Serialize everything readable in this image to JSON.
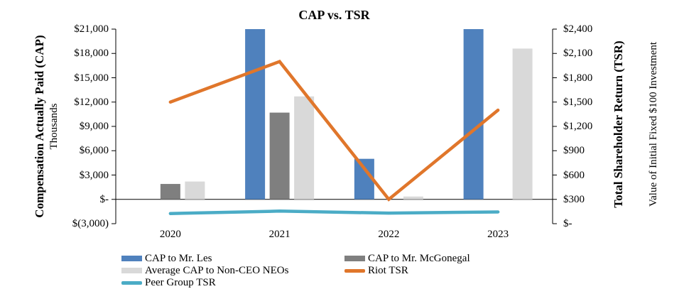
{
  "chart_data": {
    "type": "combo-bar-line",
    "title": "CAP vs. TSR",
    "categories": [
      "2020",
      "2021",
      "2022",
      "2023"
    ],
    "gridlines": false,
    "legend_position": "bottom",
    "left_axis": {
      "title": "Compensation Actually Paid (CAP)",
      "subtitle": "Thousands",
      "ticks": [
        "$21,000",
        "$18,000",
        "$15,000",
        "$12,000",
        "$9,000",
        "$6,000",
        "$3,000",
        "$-",
        "$(3,000)"
      ],
      "range": [
        -3000,
        21000
      ]
    },
    "right_axis": {
      "title": "Total Shareholder Return (TSR)",
      "subtitle": "Value of Initial Fixed $100 Investment",
      "ticks": [
        "$2,400",
        "$2,100",
        "$1,800",
        "$1,500",
        "$1,200",
        "$900",
        "$600",
        "$300",
        "$-"
      ],
      "range": [
        0,
        2400
      ]
    },
    "series": [
      {
        "name": "CAP to Mr. Les",
        "type": "bar",
        "axis": "left",
        "color": "#4F81BD",
        "values": [
          null,
          21000,
          5000,
          21000
        ]
      },
      {
        "name": "CAP to Mr. McGonegal",
        "type": "bar",
        "axis": "left",
        "color": "#7F7F7F",
        "values": [
          1900,
          10700,
          null,
          null
        ]
      },
      {
        "name": "Average CAP to Non-CEO NEOs",
        "type": "bar",
        "axis": "left",
        "color": "#D9D9D9",
        "values": [
          2200,
          12700,
          350,
          18600
        ]
      },
      {
        "name": "Riot TSR",
        "type": "line",
        "axis": "right",
        "color": "#E0762B",
        "values": [
          1500,
          2000,
          300,
          1400
        ]
      },
      {
        "name": "Peer Group TSR",
        "type": "line",
        "axis": "right",
        "color": "#4BACC6",
        "values": [
          125,
          155,
          130,
          145
        ]
      }
    ]
  }
}
